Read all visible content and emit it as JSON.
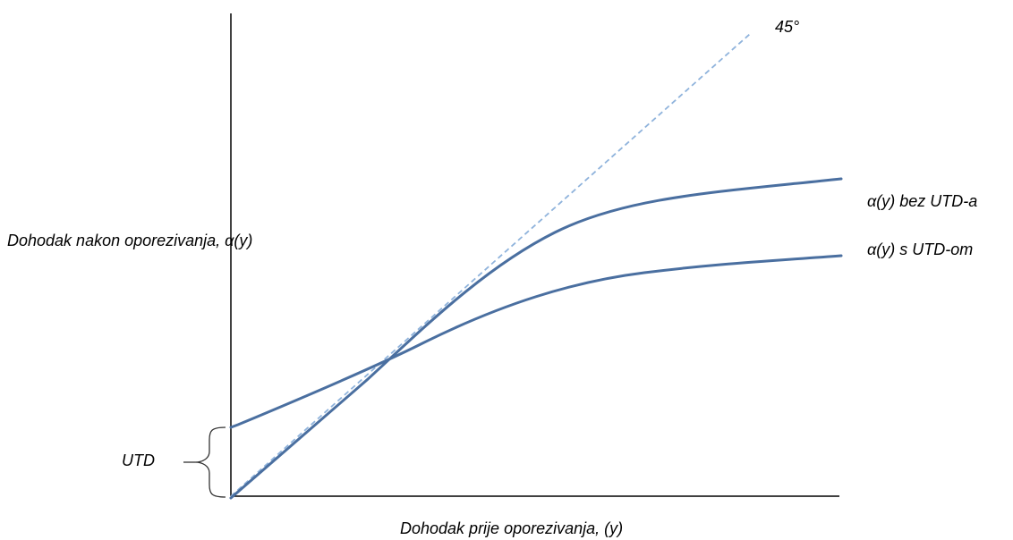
{
  "labels": {
    "y_axis": "Dohodak nakon oporezivanja, α(y)",
    "x_axis": "Dohodak prije oporezivanja, (y)",
    "degree_line": "45°",
    "curve_without": "α(y) bez UTD-a",
    "curve_with": "α(y) s UTD-om",
    "utd": "UTD"
  },
  "colors": {
    "curve": "#4a6fa0",
    "degree_line": "#8fb3dc",
    "axis": "#000000",
    "brace": "#333333"
  }
}
